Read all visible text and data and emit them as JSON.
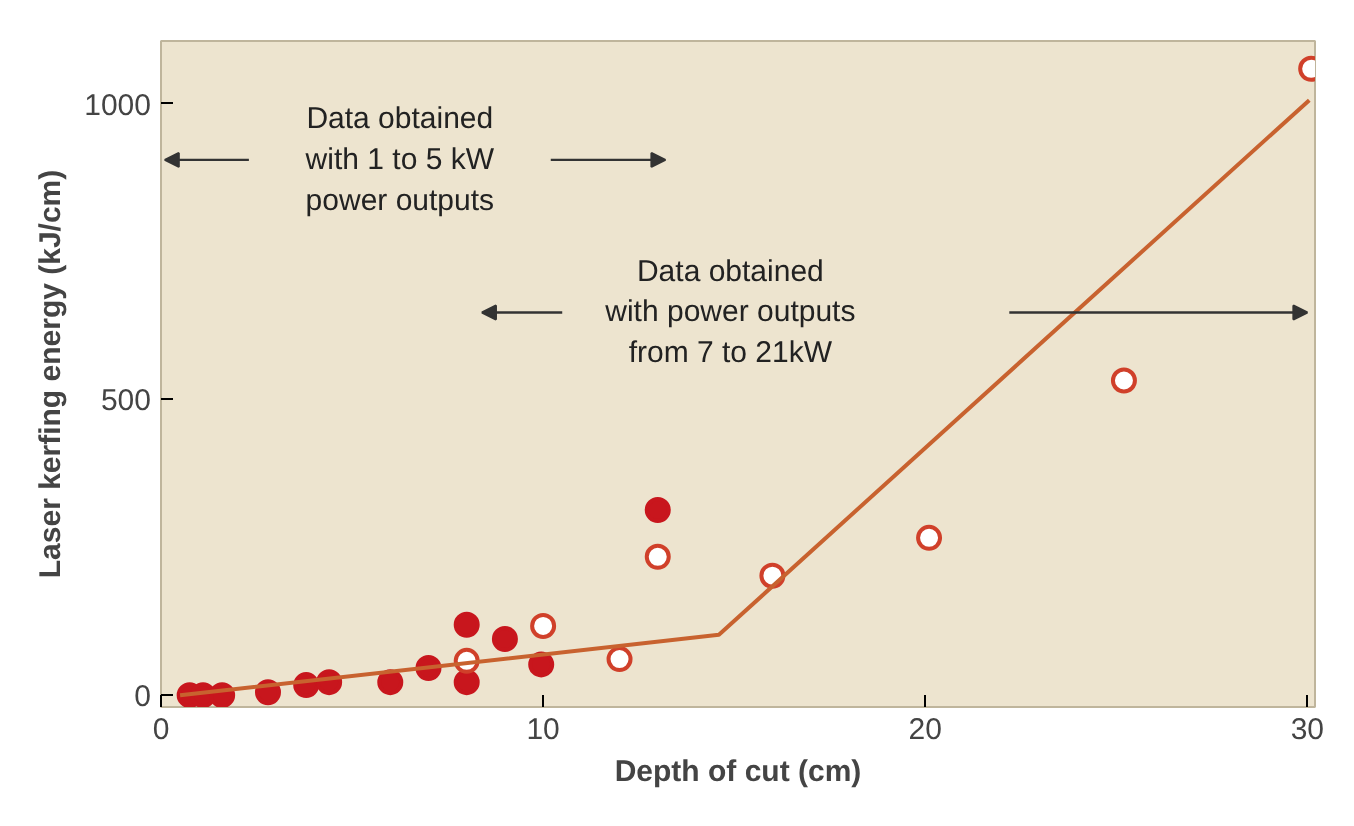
{
  "chart_data": {
    "type": "scatter",
    "xlabel": "Depth of cut (cm)",
    "ylabel": "Laser kerfing energy (kJ/cm)",
    "xlim": [
      0,
      30.2
    ],
    "ylim": [
      -20,
      1106
    ],
    "xticks": [
      0,
      10,
      20,
      30
    ],
    "yticks": [
      0,
      500,
      1000
    ],
    "grid": false,
    "series": [
      {
        "color": "#c8161d",
        "marker": "circle",
        "x": [
          0.75,
          1.1,
          1.6,
          2.8,
          3.8,
          4.4,
          6.0,
          7.0,
          8.0,
          8.0,
          9.0,
          9.95,
          13.0
        ],
        "values": [
          0,
          0,
          0,
          5,
          17,
          22,
          22,
          46,
          119,
          22,
          95,
          52,
          313
        ]
      },
      {
        "color": "#d0402a",
        "marker": "circle_open",
        "x": [
          8.0,
          10.0,
          12.0,
          13.0,
          16.0,
          20.1,
          25.2,
          30.1
        ],
        "values": [
          58,
          117,
          61,
          234,
          202,
          266,
          532,
          1059
        ]
      },
      {
        "type": "line",
        "color": "#c8622f",
        "marker": "none",
        "x": [
          0.5,
          14.6,
          30.05
        ],
        "values": [
          0,
          102,
          1006
        ]
      }
    ],
    "annotations": [
      "Data obtained\nwith 1 to 5 kW\npower outputs",
      "Data obtained\nwith power outputs\nfrom 7 to 21kW"
    ]
  }
}
